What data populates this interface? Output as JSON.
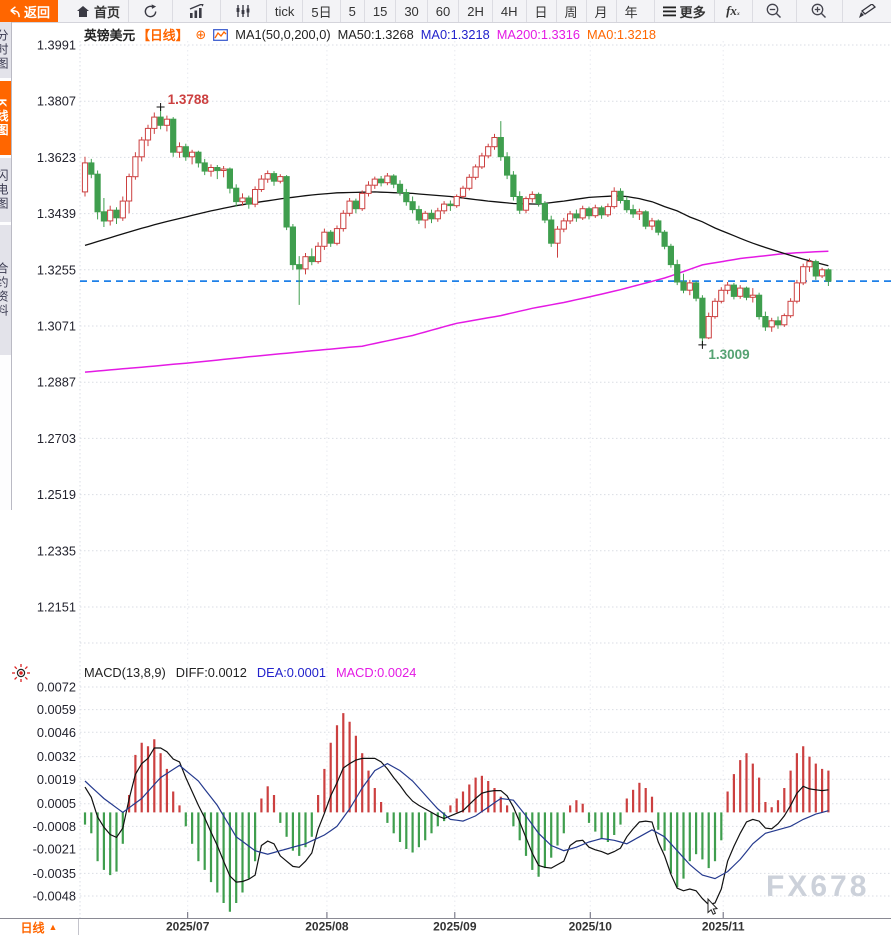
{
  "toolbar": {
    "back_label": "返回",
    "home_label": "首页",
    "periods": [
      "tick",
      "5日",
      "5",
      "15",
      "30",
      "60",
      "2H",
      "4H",
      "日",
      "周",
      "月",
      "年"
    ],
    "more_label": "更多",
    "fx_label": "fx"
  },
  "sidebar": {
    "tabs": [
      {
        "label": "分时图",
        "active": false
      },
      {
        "label": "K线图",
        "active": true
      },
      {
        "label": "闪电图",
        "active": false
      },
      {
        "label": "合约资料",
        "active": false
      }
    ]
  },
  "price_legend": {
    "symbol": "英镑美元",
    "period": "【日线】",
    "ma_group": "MA1(50,0,200,0)",
    "ma50": "MA50:1.3268",
    "ma0_blue": "MA0:1.3218",
    "ma200": "MA200:1.3316",
    "ma0_orange": "MA0:1.3218"
  },
  "macd_legend": {
    "name": "MACD(13,8,9)",
    "diff": "DIFF:0.0012",
    "dea": "DEA:0.0001",
    "macd": "MACD:0.0024"
  },
  "bottom_bar": {
    "period": "日线",
    "arrow": "▲"
  },
  "watermark": "FX678",
  "colors": {
    "up": "#cc4040",
    "down": "#3f9e4e",
    "ma50": "#111111",
    "ma200": "#e41ae4",
    "diff": "#111111",
    "dea": "#253a8e",
    "last_price_line": "#1e80e8",
    "accent_orange": "#ff6600",
    "high_label": "#cc4040",
    "low_label": "#55a272",
    "grid": "#dadde4",
    "axis_text": "#23232e"
  },
  "chart_data": {
    "type": "candlestick",
    "symbol": "英镑美元",
    "period": "日线",
    "price_axis": {
      "ticks": [
        "1.3991",
        "1.3807",
        "1.3623",
        "1.3439",
        "1.3255",
        "1.3071",
        "1.2887",
        "1.2703",
        "1.2519",
        "1.2335",
        "1.2151"
      ],
      "last_price": 1.3218
    },
    "annotations": {
      "high": {
        "label": "1.3788",
        "index": 12,
        "value": 1.3788
      },
      "low": {
        "label": "1.3009",
        "index": 98,
        "value": 1.3009
      }
    },
    "months": [
      {
        "label": "2025/07",
        "index": 16.3
      },
      {
        "label": "2025/08",
        "index": 38.4
      },
      {
        "label": "2025/09",
        "index": 58.7
      },
      {
        "label": "2025/10",
        "index": 80.2
      },
      {
        "label": "2025/11",
        "index": 101.3
      }
    ],
    "candles": [
      [
        1.351,
        1.3625,
        1.3495,
        1.3605
      ],
      [
        1.3605,
        1.3618,
        1.3555,
        1.3568
      ],
      [
        1.3568,
        1.358,
        1.342,
        1.3445
      ],
      [
        1.3445,
        1.349,
        1.3395,
        1.3415
      ],
      [
        1.3415,
        1.3465,
        1.34,
        1.345
      ],
      [
        1.345,
        1.346,
        1.3405,
        1.3425
      ],
      [
        1.3425,
        1.3495,
        1.3415,
        1.348
      ],
      [
        1.348,
        1.357,
        1.344,
        1.356
      ],
      [
        1.356,
        1.364,
        1.355,
        1.3625
      ],
      [
        1.3625,
        1.369,
        1.361,
        1.368
      ],
      [
        1.368,
        1.373,
        1.366,
        1.3718
      ],
      [
        1.3718,
        1.377,
        1.37,
        1.3755
      ],
      [
        1.3755,
        1.3788,
        1.3715,
        1.3728
      ],
      [
        1.3728,
        1.376,
        1.3708,
        1.3748
      ],
      [
        1.3748,
        1.3755,
        1.3625,
        1.364
      ],
      [
        1.364,
        1.3672,
        1.3622,
        1.3658
      ],
      [
        1.3658,
        1.3668,
        1.3612,
        1.3625
      ],
      [
        1.3625,
        1.3648,
        1.36,
        1.364
      ],
      [
        1.364,
        1.3645,
        1.359,
        1.3605
      ],
      [
        1.3605,
        1.3618,
        1.3565,
        1.3578
      ],
      [
        1.3578,
        1.36,
        1.356,
        1.359
      ],
      [
        1.359,
        1.3598,
        1.3552,
        1.358
      ],
      [
        1.358,
        1.3595,
        1.3558,
        1.3585
      ],
      [
        1.3585,
        1.359,
        1.3505,
        1.3522
      ],
      [
        1.3522,
        1.3535,
        1.3462,
        1.3478
      ],
      [
        1.3478,
        1.3505,
        1.3465,
        1.349
      ],
      [
        1.349,
        1.3498,
        1.3455,
        1.347
      ],
      [
        1.347,
        1.3528,
        1.346,
        1.3518
      ],
      [
        1.3518,
        1.3565,
        1.351,
        1.3552
      ],
      [
        1.3552,
        1.358,
        1.354,
        1.357
      ],
      [
        1.357,
        1.3578,
        1.353,
        1.3545
      ],
      [
        1.3545,
        1.3568,
        1.3538,
        1.356
      ],
      [
        1.356,
        1.3565,
        1.3385,
        1.3395
      ],
      [
        1.3395,
        1.3405,
        1.3255,
        1.3272
      ],
      [
        1.3272,
        1.33,
        1.314,
        1.3258
      ],
      [
        1.3258,
        1.331,
        1.324,
        1.3298
      ],
      [
        1.3298,
        1.3325,
        1.327,
        1.3282
      ],
      [
        1.3282,
        1.3345,
        1.3275,
        1.3332
      ],
      [
        1.3332,
        1.339,
        1.332,
        1.3378
      ],
      [
        1.3378,
        1.3385,
        1.333,
        1.3342
      ],
      [
        1.3342,
        1.34,
        1.3335,
        1.339
      ],
      [
        1.339,
        1.345,
        1.338,
        1.344
      ],
      [
        1.344,
        1.349,
        1.343,
        1.348
      ],
      [
        1.348,
        1.3488,
        1.344,
        1.3455
      ],
      [
        1.3455,
        1.3515,
        1.3448,
        1.3505
      ],
      [
        1.3505,
        1.3545,
        1.3495,
        1.3532
      ],
      [
        1.3532,
        1.356,
        1.352,
        1.3552
      ],
      [
        1.3552,
        1.3562,
        1.3528,
        1.354
      ],
      [
        1.354,
        1.3572,
        1.3532,
        1.3562
      ],
      [
        1.3562,
        1.3568,
        1.3522,
        1.3535
      ],
      [
        1.3535,
        1.3548,
        1.3498,
        1.3508
      ],
      [
        1.3508,
        1.352,
        1.3465,
        1.3478
      ],
      [
        1.3478,
        1.3495,
        1.344,
        1.3452
      ],
      [
        1.3452,
        1.3465,
        1.3405,
        1.3418
      ],
      [
        1.3418,
        1.3448,
        1.3391,
        1.344
      ],
      [
        1.344,
        1.3452,
        1.3408,
        1.3422
      ],
      [
        1.3422,
        1.3458,
        1.3412,
        1.3448
      ],
      [
        1.3448,
        1.348,
        1.3438,
        1.347
      ],
      [
        1.347,
        1.3482,
        1.3448,
        1.3465
      ],
      [
        1.3465,
        1.3502,
        1.3458,
        1.3495
      ],
      [
        1.3495,
        1.353,
        1.3488,
        1.3522
      ],
      [
        1.3522,
        1.3568,
        1.3515,
        1.3558
      ],
      [
        1.3558,
        1.36,
        1.355,
        1.3592
      ],
      [
        1.3592,
        1.3638,
        1.3585,
        1.3628
      ],
      [
        1.3628,
        1.3668,
        1.362,
        1.3658
      ],
      [
        1.3658,
        1.37,
        1.3648,
        1.3688
      ],
      [
        1.3688,
        1.3742,
        1.3612,
        1.3625
      ],
      [
        1.3625,
        1.364,
        1.3552,
        1.3565
      ],
      [
        1.3565,
        1.3578,
        1.3482,
        1.3495
      ],
      [
        1.3495,
        1.3512,
        1.3438,
        1.345
      ],
      [
        1.345,
        1.3495,
        1.344,
        1.3488
      ],
      [
        1.3488,
        1.3512,
        1.3475,
        1.3502
      ],
      [
        1.3502,
        1.3508,
        1.3462,
        1.3472
      ],
      [
        1.3472,
        1.348,
        1.3408,
        1.3418
      ],
      [
        1.3418,
        1.3432,
        1.333,
        1.3342
      ],
      [
        1.3342,
        1.3398,
        1.3295,
        1.3388
      ],
      [
        1.3388,
        1.3425,
        1.3378,
        1.3415
      ],
      [
        1.3415,
        1.3448,
        1.3405,
        1.3438
      ],
      [
        1.3438,
        1.3452,
        1.3412,
        1.3425
      ],
      [
        1.3425,
        1.3465,
        1.3418,
        1.3455
      ],
      [
        1.3455,
        1.3462,
        1.342,
        1.3432
      ],
      [
        1.3432,
        1.3468,
        1.3425,
        1.3458
      ],
      [
        1.3458,
        1.3465,
        1.3422,
        1.3435
      ],
      [
        1.3435,
        1.3472,
        1.3428,
        1.3462
      ],
      [
        1.3462,
        1.3525,
        1.3455,
        1.3512
      ],
      [
        1.3512,
        1.3522,
        1.3472,
        1.3482
      ],
      [
        1.3482,
        1.3495,
        1.3442,
        1.3452
      ],
      [
        1.3452,
        1.3468,
        1.3425,
        1.3438
      ],
      [
        1.3438,
        1.3455,
        1.3418,
        1.3445
      ],
      [
        1.3445,
        1.345,
        1.3388,
        1.3398
      ],
      [
        1.3398,
        1.3425,
        1.3385,
        1.3415
      ],
      [
        1.3415,
        1.342,
        1.3368,
        1.3378
      ],
      [
        1.3378,
        1.3385,
        1.3322,
        1.3332
      ],
      [
        1.3332,
        1.334,
        1.3262,
        1.3272
      ],
      [
        1.3272,
        1.3288,
        1.3205,
        1.3215
      ],
      [
        1.3215,
        1.3242,
        1.3178,
        1.3188
      ],
      [
        1.3188,
        1.3222,
        1.3172,
        1.3212
      ],
      [
        1.3212,
        1.3218,
        1.3152,
        1.3162
      ],
      [
        1.3162,
        1.3172,
        1.3009,
        1.3032
      ],
      [
        1.3032,
        1.3115,
        1.3028,
        1.3102
      ],
      [
        1.3102,
        1.3162,
        1.3095,
        1.3152
      ],
      [
        1.3152,
        1.3198,
        1.3145,
        1.3188
      ],
      [
        1.3188,
        1.3215,
        1.3175,
        1.3205
      ],
      [
        1.3205,
        1.3212,
        1.3158,
        1.3168
      ],
      [
        1.3168,
        1.3205,
        1.316,
        1.3195
      ],
      [
        1.3195,
        1.32,
        1.3155,
        1.3165
      ],
      [
        1.3165,
        1.3195,
        1.3148,
        1.3172
      ],
      [
        1.3172,
        1.318,
        1.3092,
        1.3102
      ],
      [
        1.3102,
        1.3118,
        1.3055,
        1.3068
      ],
      [
        1.3068,
        1.3098,
        1.3052,
        1.3088
      ],
      [
        1.3088,
        1.3102,
        1.3062,
        1.3075
      ],
      [
        1.3075,
        1.3112,
        1.3068,
        1.3105
      ],
      [
        1.3105,
        1.3162,
        1.3098,
        1.3152
      ],
      [
        1.3152,
        1.3222,
        1.3145,
        1.3212
      ],
      [
        1.3212,
        1.3275,
        1.3205,
        1.3265
      ],
      [
        1.3265,
        1.3292,
        1.3248,
        1.3282
      ],
      [
        1.3282,
        1.3288,
        1.3222,
        1.3235
      ],
      [
        1.3235,
        1.3262,
        1.3228,
        1.3255
      ],
      [
        1.3255,
        1.326,
        1.3202,
        1.3218
      ]
    ],
    "ma50_keypoints": [
      [
        0,
        1.3335
      ],
      [
        4,
        1.336
      ],
      [
        8,
        1.3385
      ],
      [
        12,
        1.3408
      ],
      [
        16,
        1.3428
      ],
      [
        20,
        1.3448
      ],
      [
        24,
        1.3465
      ],
      [
        28,
        1.3478
      ],
      [
        32,
        1.349
      ],
      [
        36,
        1.35
      ],
      [
        40,
        1.3507
      ],
      [
        46,
        1.351
      ],
      [
        52,
        1.3505
      ],
      [
        58,
        1.3495
      ],
      [
        64,
        1.348
      ],
      [
        68,
        1.3472
      ],
      [
        72,
        1.347
      ],
      [
        76,
        1.348
      ],
      [
        80,
        1.3492
      ],
      [
        84,
        1.3497
      ],
      [
        86,
        1.3495
      ],
      [
        88,
        1.3488
      ],
      [
        90,
        1.3478
      ],
      [
        92,
        1.3462
      ],
      [
        94,
        1.3448
      ],
      [
        96,
        1.3428
      ],
      [
        98,
        1.3412
      ],
      [
        100,
        1.3392
      ],
      [
        102,
        1.3375
      ],
      [
        104,
        1.3358
      ],
      [
        106,
        1.3342
      ],
      [
        108,
        1.3328
      ],
      [
        110,
        1.3315
      ],
      [
        112,
        1.3302
      ],
      [
        114,
        1.329
      ],
      [
        116,
        1.3279
      ],
      [
        118,
        1.3268
      ]
    ],
    "ma200_keypoints": [
      [
        0,
        1.292
      ],
      [
        10,
        1.2938
      ],
      [
        18,
        1.2953
      ],
      [
        26,
        1.297
      ],
      [
        34,
        1.2986
      ],
      [
        44,
        1.3005
      ],
      [
        52,
        1.304
      ],
      [
        59,
        1.308
      ],
      [
        66,
        1.3105
      ],
      [
        71,
        1.3129
      ],
      [
        76,
        1.3148
      ],
      [
        80,
        1.3166
      ],
      [
        85,
        1.319
      ],
      [
        92,
        1.3228
      ],
      [
        98,
        1.3271
      ],
      [
        104,
        1.3292
      ],
      [
        111,
        1.3308
      ],
      [
        115,
        1.3313
      ],
      [
        118,
        1.3316
      ]
    ],
    "macd": {
      "params": "(13,8,9)",
      "unit": 0.0001,
      "axis_ticks": [
        "0.0072",
        "0.0059",
        "0.0046",
        "0.0032",
        "0.0019",
        "0.0005",
        "-0.0008",
        "-0.0021",
        "-0.0035",
        "-0.0048"
      ],
      "hist": [
        -7,
        -12,
        -28,
        -33,
        -36,
        -34,
        -18,
        10,
        33,
        40,
        38,
        42,
        34,
        25,
        12,
        4,
        -8,
        -18,
        -28,
        -33,
        -40,
        -46,
        -52,
        -57,
        -52,
        -46,
        -38,
        -28,
        8,
        15,
        10,
        -6,
        -14,
        -22,
        -25,
        -20,
        -14,
        10,
        25,
        40,
        50,
        57,
        52,
        44,
        34,
        24,
        14,
        6,
        -6,
        -12,
        -17,
        -21,
        -23,
        -20,
        -16,
        -12,
        -8,
        -5,
        4,
        8,
        12,
        16,
        20,
        21,
        18,
        14,
        9,
        4,
        -8,
        -16,
        -25,
        -33,
        -37,
        -32,
        -26,
        -19,
        -12,
        4,
        7,
        5,
        -6,
        -11,
        -15,
        -17,
        -13,
        -7,
        8,
        13,
        17,
        14,
        9,
        -10,
        -22,
        -35,
        -43,
        -38,
        -28,
        -24,
        -27,
        -32,
        -28,
        -16,
        12,
        22,
        30,
        34,
        28,
        20,
        6,
        3,
        7,
        14,
        24,
        34,
        38,
        32,
        28,
        25,
        24
      ],
      "dea_keypoints": [
        [
          0,
          18
        ],
        [
          3,
          8
        ],
        [
          6,
          0
        ],
        [
          9,
          8
        ],
        [
          12,
          20
        ],
        [
          15,
          27
        ],
        [
          18,
          18
        ],
        [
          21,
          4
        ],
        [
          24,
          -14
        ],
        [
          27,
          -22
        ],
        [
          29,
          -24
        ],
        [
          32,
          -21
        ],
        [
          35,
          -18
        ],
        [
          38,
          -13
        ],
        [
          40,
          -8
        ],
        [
          42,
          2
        ],
        [
          44,
          14
        ],
        [
          46,
          24
        ],
        [
          48,
          28
        ],
        [
          50,
          24
        ],
        [
          52,
          18
        ],
        [
          54,
          10
        ],
        [
          56,
          2
        ],
        [
          58,
          -4
        ],
        [
          60,
          -5
        ],
        [
          62,
          -2
        ],
        [
          64,
          3
        ],
        [
          66,
          8
        ],
        [
          68,
          7
        ],
        [
          70,
          -2
        ],
        [
          72,
          -12
        ],
        [
          74,
          -19
        ],
        [
          76,
          -22
        ],
        [
          78,
          -20
        ],
        [
          80,
          -17
        ],
        [
          82,
          -15
        ],
        [
          84,
          -16
        ],
        [
          86,
          -18
        ],
        [
          88,
          -14
        ],
        [
          90,
          -10
        ],
        [
          92,
          -14
        ],
        [
          94,
          -22
        ],
        [
          96,
          -30
        ],
        [
          98,
          -36
        ],
        [
          100,
          -38
        ],
        [
          102,
          -34
        ],
        [
          104,
          -27
        ],
        [
          106,
          -18
        ],
        [
          108,
          -12
        ],
        [
          110,
          -10
        ],
        [
          112,
          -8
        ],
        [
          114,
          -4
        ],
        [
          116,
          -1
        ],
        [
          118,
          1
        ]
      ]
    }
  }
}
